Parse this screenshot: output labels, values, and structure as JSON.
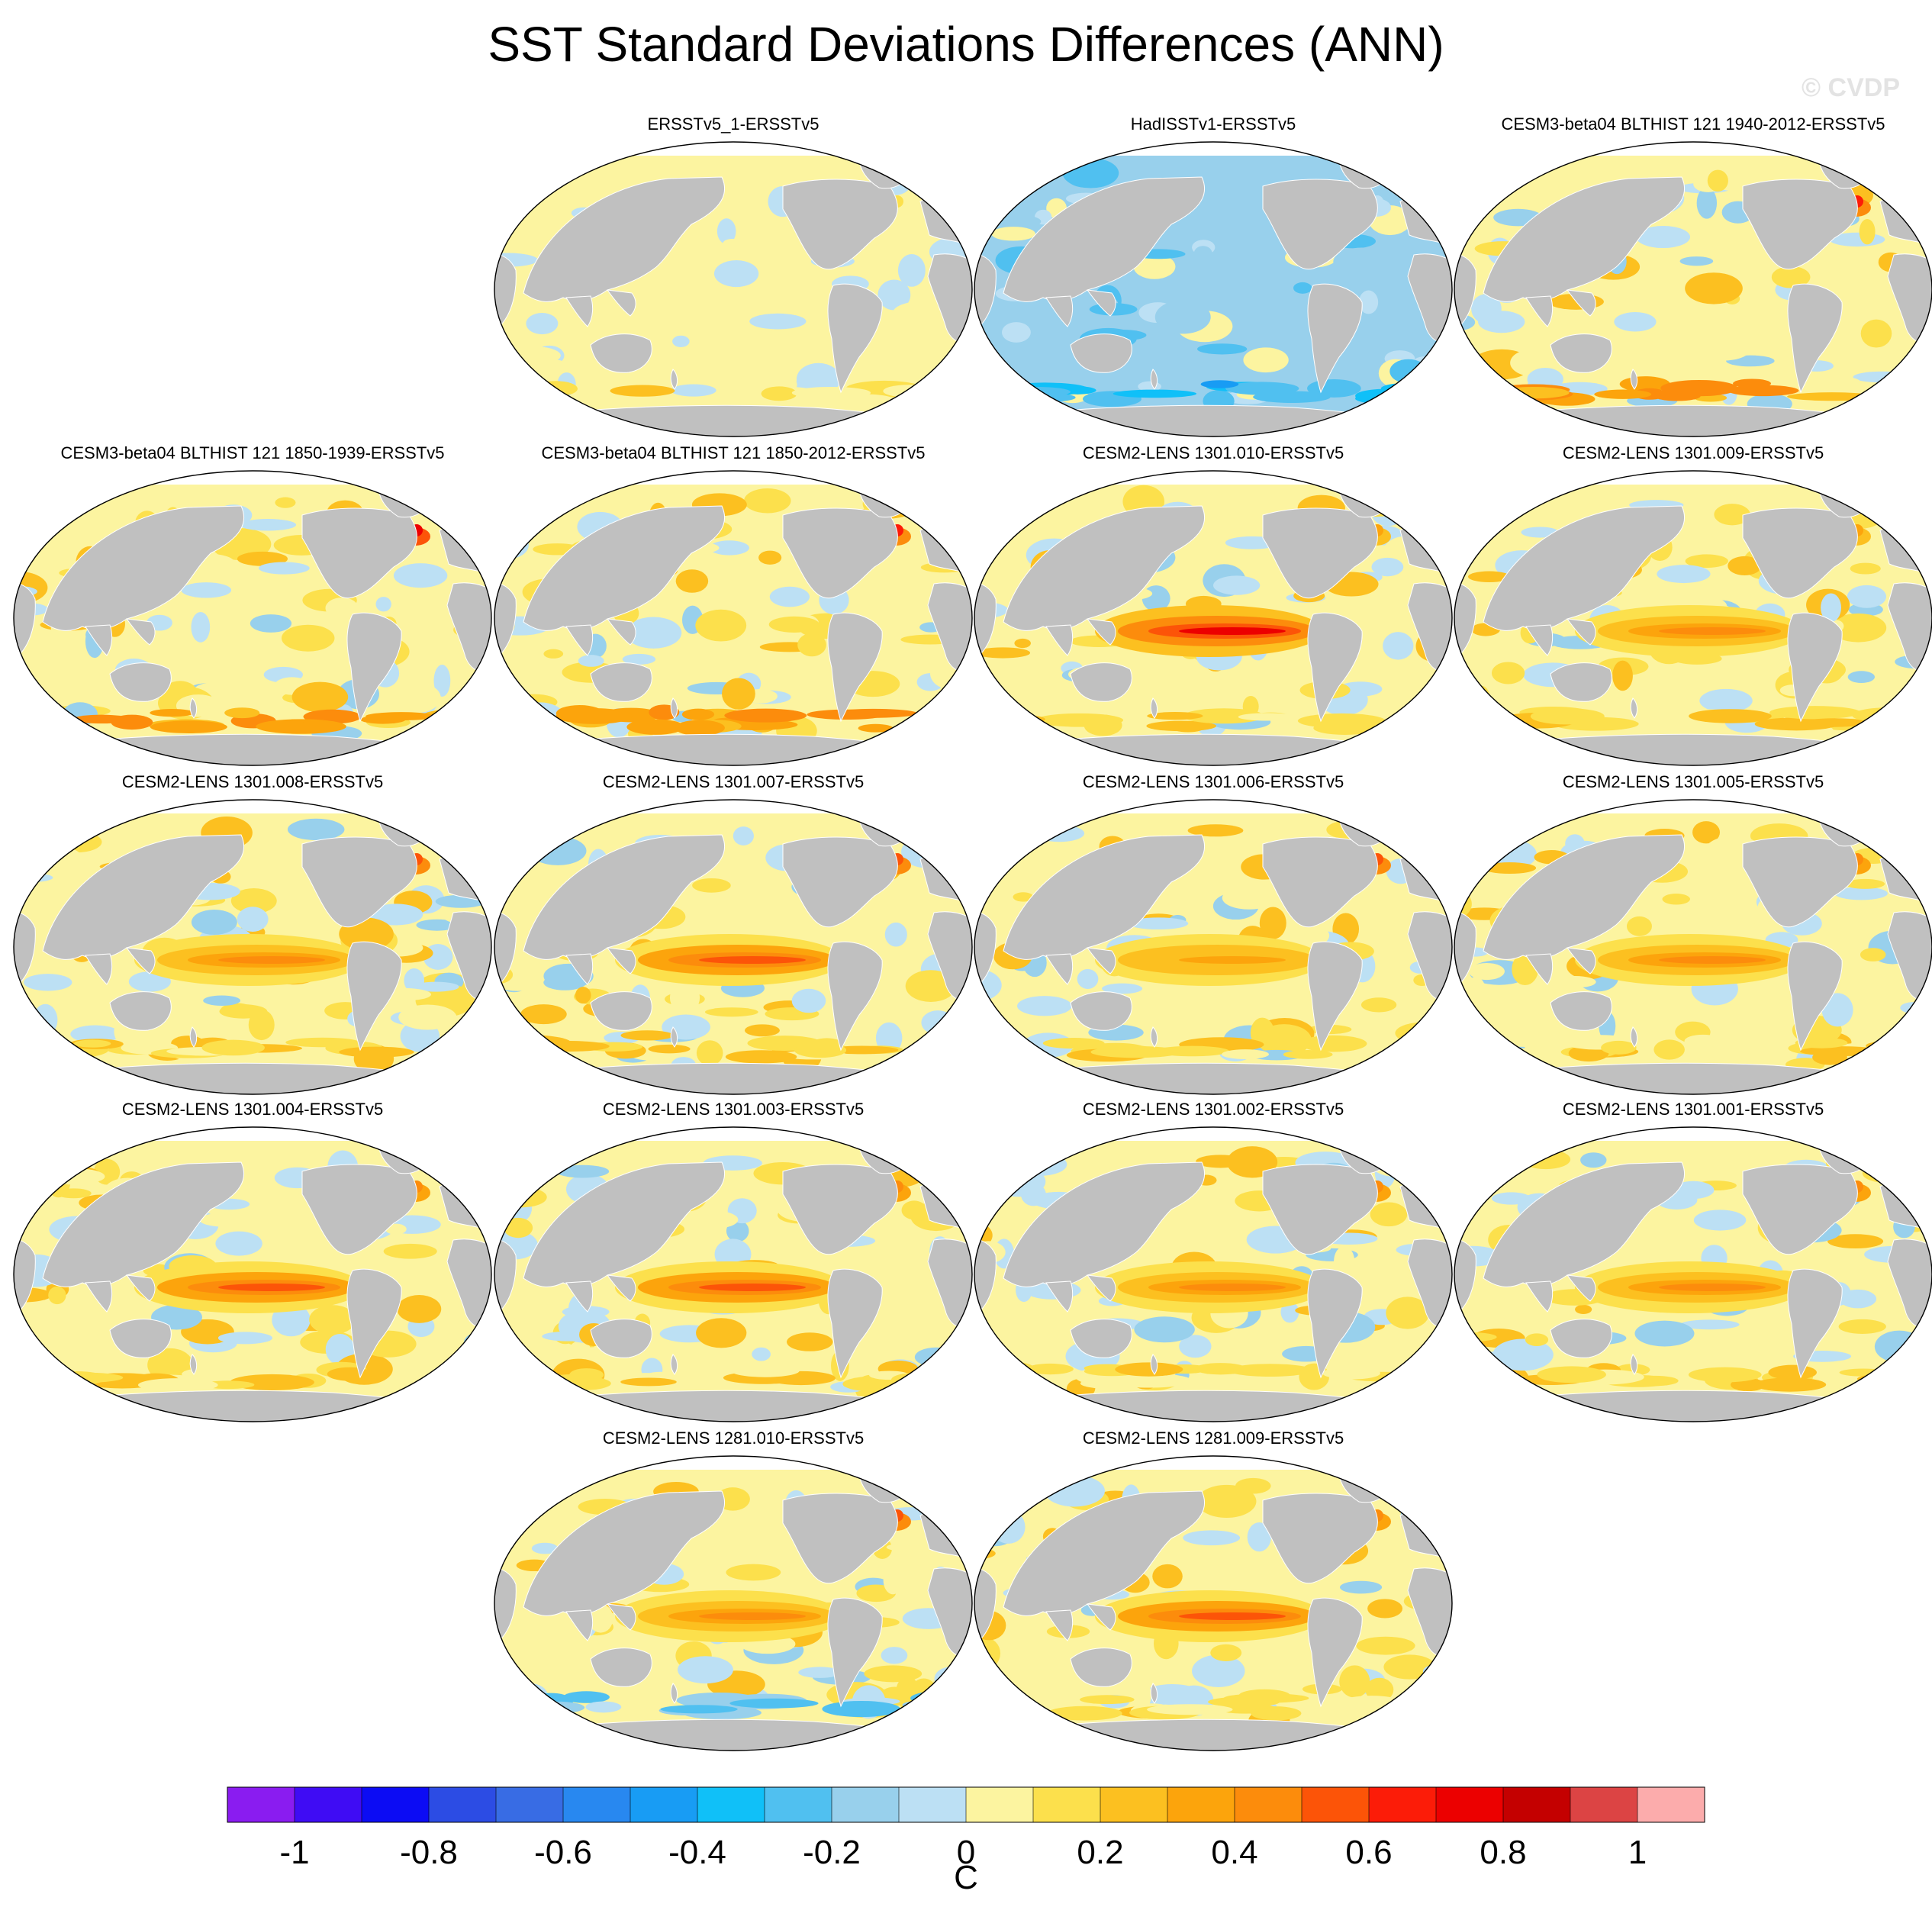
{
  "figure": {
    "title": "SST Standard Deviations Differences (ANN)",
    "credit": "© CVDP"
  },
  "panels": [
    {
      "title": "ERSSTv5_1-ERSSTv5",
      "row": 0,
      "col": 1,
      "pattern": "weak-mixed",
      "enso": 0.05,
      "north_atlantic": 0.1,
      "southern_ocean": 0.05
    },
    {
      "title": "HadISSTv1-ERSSTv5",
      "row": 0,
      "col": 2,
      "pattern": "mostly-negative",
      "enso": -0.1,
      "north_atlantic": -0.05,
      "southern_ocean": -0.15
    },
    {
      "title": "CESM3-beta04 BLTHIST 121 1940-2012-ERSSTv5",
      "row": 0,
      "col": 3,
      "pattern": "positive-extratropics",
      "enso": 0.05,
      "north_atlantic": 0.6,
      "southern_ocean": 0.3
    },
    {
      "title": "CESM3-beta04 BLTHIST 121 1850-1939-ERSSTv5",
      "row": 1,
      "col": 0,
      "pattern": "positive-extratropics",
      "enso": 0.05,
      "north_atlantic": 0.7,
      "southern_ocean": 0.3
    },
    {
      "title": "CESM3-beta04 BLTHIST 121 1850-2012-ERSSTv5",
      "row": 1,
      "col": 1,
      "pattern": "positive-extratropics",
      "enso": 0.05,
      "north_atlantic": 0.6,
      "southern_ocean": 0.3
    },
    {
      "title": "CESM2-LENS 1301.010-ERSSTv5",
      "row": 1,
      "col": 2,
      "pattern": "strong-enso",
      "enso": 0.7,
      "north_atlantic": 0.3,
      "southern_ocean": 0.1
    },
    {
      "title": "CESM2-LENS 1301.009-ERSSTv5",
      "row": 1,
      "col": 3,
      "pattern": "strong-enso",
      "enso": 0.45,
      "north_atlantic": 0.3,
      "southern_ocean": 0.1
    },
    {
      "title": "CESM2-LENS 1301.008-ERSSTv5",
      "row": 2,
      "col": 0,
      "pattern": "strong-enso",
      "enso": 0.45,
      "north_atlantic": 0.5,
      "southern_ocean": 0.1
    },
    {
      "title": "CESM2-LENS 1301.007-ERSSTv5",
      "row": 2,
      "col": 1,
      "pattern": "strong-enso",
      "enso": 0.55,
      "north_atlantic": 0.5,
      "southern_ocean": 0.1
    },
    {
      "title": "CESM2-LENS 1301.006-ERSSTv5",
      "row": 2,
      "col": 2,
      "pattern": "strong-enso",
      "enso": 0.35,
      "north_atlantic": 0.5,
      "southern_ocean": 0.05
    },
    {
      "title": "CESM2-LENS 1301.005-ERSSTv5",
      "row": 2,
      "col": 3,
      "pattern": "strong-enso",
      "enso": 0.45,
      "north_atlantic": 0.4,
      "southern_ocean": 0.1
    },
    {
      "title": "CESM2-LENS 1301.004-ERSSTv5",
      "row": 3,
      "col": 0,
      "pattern": "strong-enso",
      "enso": 0.55,
      "north_atlantic": 0.45,
      "southern_ocean": 0.1
    },
    {
      "title": "CESM2-LENS 1301.003-ERSSTv5",
      "row": 3,
      "col": 1,
      "pattern": "strong-enso",
      "enso": 0.5,
      "north_atlantic": 0.45,
      "southern_ocean": 0.1
    },
    {
      "title": "CESM2-LENS 1301.002-ERSSTv5",
      "row": 3,
      "col": 2,
      "pattern": "strong-enso",
      "enso": 0.4,
      "north_atlantic": 0.4,
      "southern_ocean": 0.05
    },
    {
      "title": "CESM2-LENS 1301.001-ERSSTv5",
      "row": 3,
      "col": 3,
      "pattern": "strong-enso",
      "enso": 0.4,
      "north_atlantic": 0.4,
      "southern_ocean": 0.1
    },
    {
      "title": "CESM2-LENS 1281.010-ERSSTv5",
      "row": 4,
      "col": 1,
      "pattern": "strong-enso",
      "enso": 0.45,
      "north_atlantic": 0.5,
      "southern_ocean": 0.0
    },
    {
      "title": "CESM2-LENS 1281.009-ERSSTv5",
      "row": 4,
      "col": 2,
      "pattern": "strong-enso",
      "enso": 0.5,
      "north_atlantic": 0.4,
      "southern_ocean": 0.05
    }
  ],
  "colorbar": {
    "levels": [
      -1.1,
      -1.0,
      -0.9,
      -0.8,
      -0.7,
      -0.6,
      -0.5,
      -0.4,
      -0.3,
      -0.2,
      -0.1,
      0.0,
      0.1,
      0.2,
      0.3,
      0.4,
      0.5,
      0.6,
      0.7,
      0.8,
      0.9,
      1.0,
      1.1
    ],
    "colors": [
      "#8a1cf0",
      "#3f0cf4",
      "#0c0cf4",
      "#2c4ce4",
      "#386ce4",
      "#2888f0",
      "#189cf4",
      "#10c0f8",
      "#50c0f0",
      "#98d0ec",
      "#bce0f4",
      "#fcf4a0",
      "#fce04c",
      "#fcc020",
      "#fca40c",
      "#fc8c0c",
      "#fc5408",
      "#fc1c08",
      "#ec0000",
      "#c40000",
      "#dc4444",
      "#fcacac"
    ],
    "tick_labels": [
      "-1",
      "-0.8",
      "-0.6",
      "-0.4",
      "-0.2",
      "0",
      "0.2",
      "0.4",
      "0.6",
      "0.8",
      "1"
    ],
    "unit": "C"
  },
  "colors": {
    "land": "#c0c0c0",
    "missing": "#ffffff",
    "background": "#ffffff"
  }
}
